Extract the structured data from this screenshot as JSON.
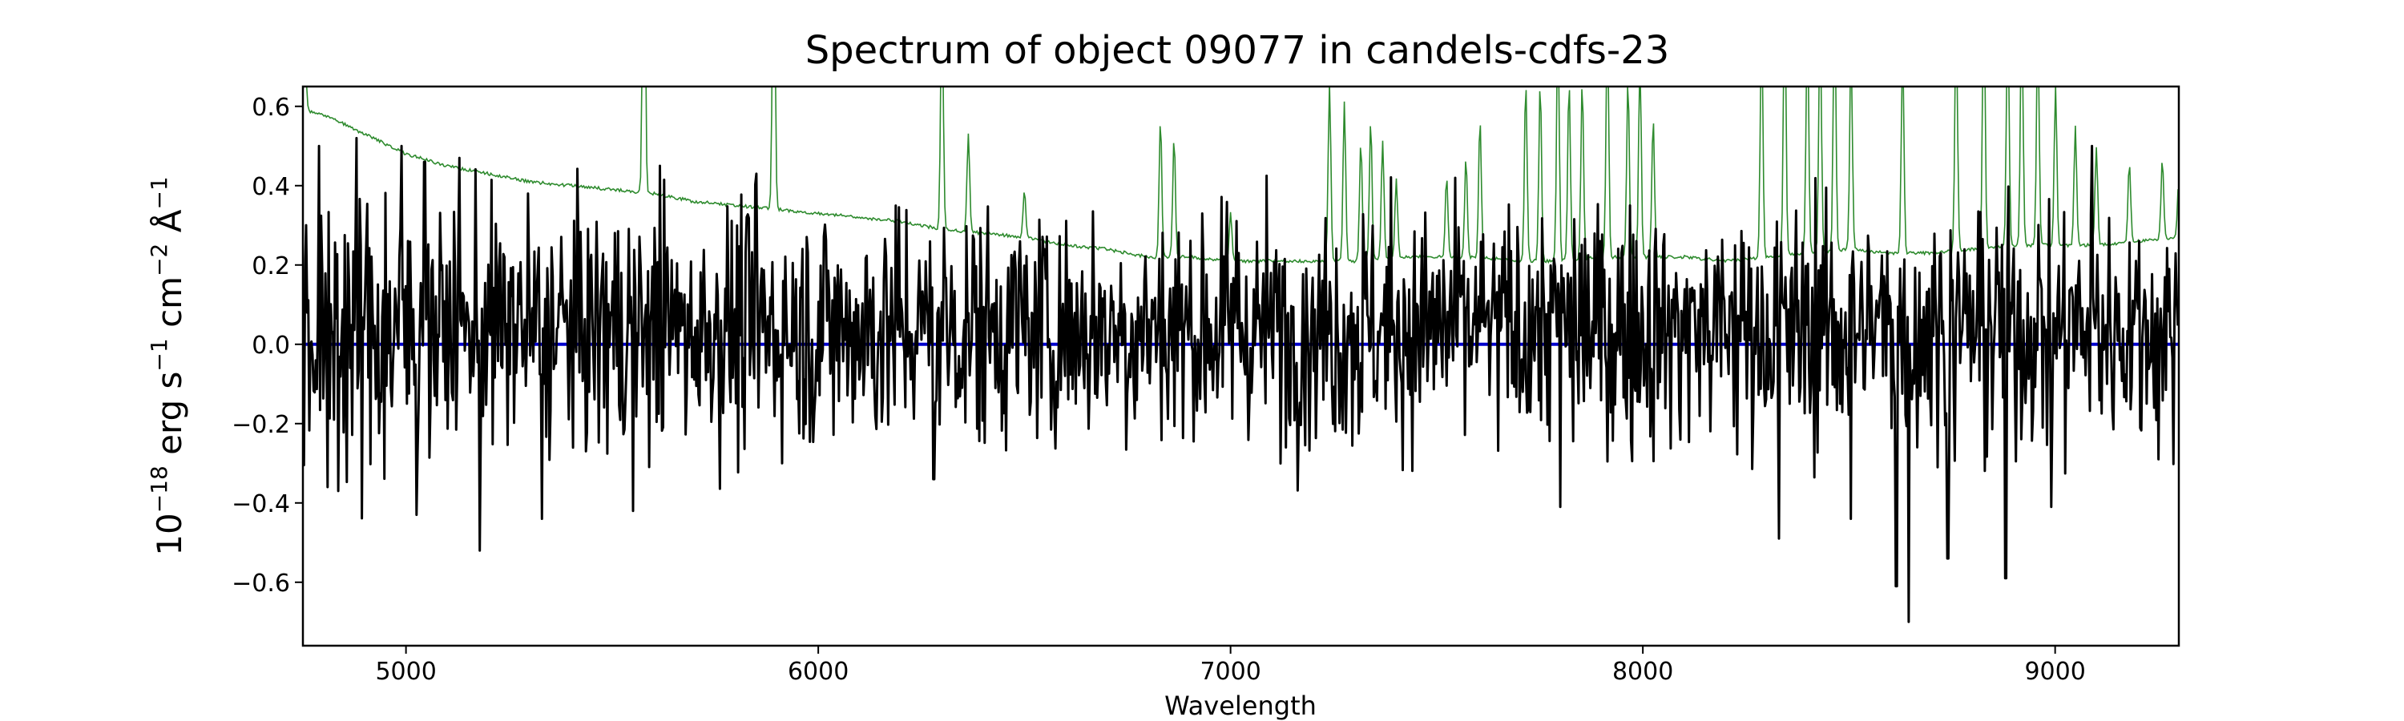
{
  "chart_data": {
    "type": "line",
    "title": "Spectrum of object 09077 in candels-cdfs-23",
    "xlabel": "Wavelength",
    "ylabel_parts": [
      "10",
      "−18",
      " erg s",
      "−1",
      " cm",
      "−2",
      " Å",
      "−1"
    ],
    "xlim": [
      4750,
      9300
    ],
    "ylim": [
      -0.76,
      0.65
    ],
    "xticks": [
      5000,
      6000,
      7000,
      8000,
      9000
    ],
    "xtick_labels": [
      "5000",
      "6000",
      "7000",
      "8000",
      "9000"
    ],
    "yticks": [
      -0.6,
      -0.4,
      -0.2,
      0.0,
      0.2,
      0.4,
      0.6
    ],
    "ytick_labels": [
      "−0.6",
      "−0.4",
      "−0.2",
      "0.0",
      "0.2",
      "0.4",
      "0.6"
    ],
    "grid": false,
    "colors": {
      "flux": "#000000",
      "error": "#2e8b2e",
      "model": "#0000cd"
    },
    "series": [
      {
        "key": "error",
        "color": "#2e8b2e",
        "baseline": {
          "x": [
            4750,
            4800,
            4900,
            5000,
            5100,
            5200,
            5300,
            5400,
            5500,
            5600,
            5700,
            5800,
            5900,
            6000,
            6100,
            6200,
            6300,
            6400,
            6500,
            6600,
            6700,
            6800,
            6900,
            7000,
            7100,
            7200,
            7300,
            7400,
            7500,
            7600,
            7700,
            7800,
            7900,
            8000,
            8100,
            8200,
            8300,
            8400,
            8500,
            8600,
            8700,
            8800,
            8900,
            9000,
            9100,
            9200,
            9300
          ],
          "y": [
            0.59,
            0.58,
            0.53,
            0.48,
            0.45,
            0.43,
            0.41,
            0.4,
            0.39,
            0.38,
            0.36,
            0.35,
            0.34,
            0.33,
            0.32,
            0.31,
            0.29,
            0.28,
            0.27,
            0.25,
            0.24,
            0.22,
            0.22,
            0.21,
            0.21,
            0.21,
            0.21,
            0.22,
            0.22,
            0.22,
            0.21,
            0.21,
            0.22,
            0.22,
            0.22,
            0.21,
            0.22,
            0.23,
            0.24,
            0.23,
            0.23,
            0.24,
            0.25,
            0.25,
            0.25,
            0.26,
            0.27
          ]
        },
        "sky_lines": [
          {
            "x": 4755,
            "height": 0.15
          },
          {
            "x": 5577,
            "height": 0.9
          },
          {
            "x": 5892,
            "height": 0.8
          },
          {
            "x": 6300,
            "height": 0.6
          },
          {
            "x": 6364,
            "height": 0.25
          },
          {
            "x": 6500,
            "height": 0.12
          },
          {
            "x": 6830,
            "height": 0.35
          },
          {
            "x": 6863,
            "height": 0.3
          },
          {
            "x": 7000,
            "height": 0.12
          },
          {
            "x": 7240,
            "height": 0.45
          },
          {
            "x": 7276,
            "height": 0.4
          },
          {
            "x": 7316,
            "height": 0.3
          },
          {
            "x": 7340,
            "height": 0.35
          },
          {
            "x": 7369,
            "height": 0.3
          },
          {
            "x": 7402,
            "height": 0.2
          },
          {
            "x": 7524,
            "height": 0.2
          },
          {
            "x": 7571,
            "height": 0.25
          },
          {
            "x": 7605,
            "height": 0.35
          },
          {
            "x": 7716,
            "height": 0.45
          },
          {
            "x": 7751,
            "height": 0.45
          },
          {
            "x": 7794,
            "height": 0.6
          },
          {
            "x": 7821,
            "height": 0.45
          },
          {
            "x": 7853,
            "height": 0.45
          },
          {
            "x": 7914,
            "height": 0.6
          },
          {
            "x": 7964,
            "height": 0.45
          },
          {
            "x": 7993,
            "height": 0.5
          },
          {
            "x": 8025,
            "height": 0.35
          },
          {
            "x": 8288,
            "height": 0.6
          },
          {
            "x": 8344,
            "height": 0.65
          },
          {
            "x": 8399,
            "height": 0.6
          },
          {
            "x": 8430,
            "height": 0.6
          },
          {
            "x": 8465,
            "height": 0.65
          },
          {
            "x": 8505,
            "height": 0.5
          },
          {
            "x": 8630,
            "height": 0.5
          },
          {
            "x": 8760,
            "height": 0.6
          },
          {
            "x": 8827,
            "height": 0.65
          },
          {
            "x": 8885,
            "height": 0.6
          },
          {
            "x": 8919,
            "height": 0.6
          },
          {
            "x": 8958,
            "height": 0.55
          },
          {
            "x": 9001,
            "height": 0.4
          },
          {
            "x": 9049,
            "height": 0.3
          },
          {
            "x": 9100,
            "height": 0.25
          },
          {
            "x": 9180,
            "height": 0.2
          },
          {
            "x": 9260,
            "height": 0.2
          },
          {
            "x": 9300,
            "height": 0.15
          }
        ]
      },
      {
        "key": "flux",
        "color": "#000000",
        "anchors": [
          {
            "x": 4760,
            "y": 0.08
          },
          {
            "x": 4790,
            "y": 0.5
          },
          {
            "x": 4810,
            "y": -0.36
          },
          {
            "x": 4835,
            "y": -0.37
          },
          {
            "x": 4880,
            "y": 0.52
          },
          {
            "x": 4990,
            "y": 0.5
          },
          {
            "x": 5025,
            "y": -0.43
          },
          {
            "x": 5045,
            "y": 0.46
          },
          {
            "x": 5130,
            "y": 0.47
          },
          {
            "x": 5180,
            "y": -0.52
          },
          {
            "x": 5330,
            "y": -0.44
          },
          {
            "x": 5550,
            "y": -0.42
          },
          {
            "x": 5615,
            "y": 0.45
          },
          {
            "x": 5850,
            "y": 0.43
          },
          {
            "x": 6280,
            "y": -0.34
          },
          {
            "x": 7020,
            "y": 0.23
          },
          {
            "x": 7800,
            "y": -0.41
          },
          {
            "x": 8330,
            "y": -0.49
          },
          {
            "x": 8505,
            "y": -0.44
          },
          {
            "x": 8615,
            "y": -0.61
          },
          {
            "x": 8645,
            "y": -0.7
          },
          {
            "x": 8740,
            "y": -0.54
          },
          {
            "x": 8880,
            "y": -0.59
          },
          {
            "x": 8990,
            "y": -0.41
          },
          {
            "x": 9090,
            "y": 0.5
          },
          {
            "x": 9250,
            "y": -0.29
          }
        ],
        "noise_sigma": 0.15
      },
      {
        "key": "model",
        "color": "#0000cd",
        "x": [
          4750,
          9300
        ],
        "y": [
          0.0,
          0.0
        ]
      }
    ]
  }
}
